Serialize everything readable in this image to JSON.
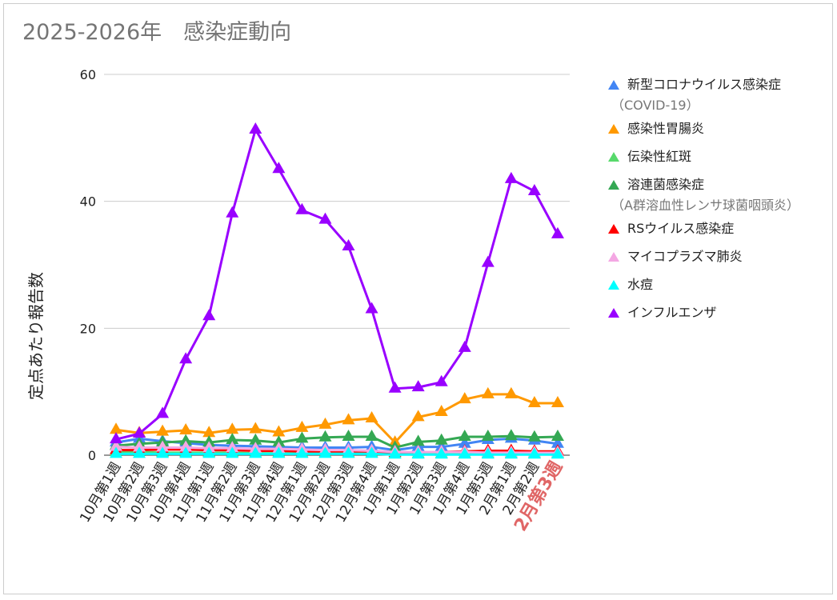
{
  "title": "2025-2026年　感染症動向",
  "chart_data": {
    "type": "line",
    "title": "2025-2026年　感染症動向",
    "ylabel": "定点あたり報告数",
    "xlabel": "",
    "ylim": [
      0,
      60
    ],
    "yticks": [
      0,
      20,
      40,
      60
    ],
    "grid": true,
    "legend": "right",
    "categories": [
      "10月第1週",
      "10月第2週",
      "10月第3週",
      "10月第4週",
      "11月第1週",
      "11月第2週",
      "11月第3週",
      "11月第4週",
      "12月第1週",
      "12月第2週",
      "12月第3週",
      "12月第4週",
      "1月第1週",
      "1月第2週",
      "1月第3週",
      "1月第4週",
      "1月第5週",
      "2月第1週",
      "2月第2週",
      "2月第3週"
    ],
    "highlight_category_color": "#e06666",
    "series": [
      {
        "name": "新型コロナウイルス感染症",
        "sub": "（COVID-19）",
        "color": "#4285f4",
        "values": [
          2.0,
          2.6,
          2.2,
          1.9,
          1.6,
          1.5,
          1.4,
          1.3,
          1.2,
          1.2,
          1.2,
          1.3,
          0.8,
          1.3,
          1.3,
          1.8,
          2.4,
          2.6,
          2.3,
          1.8
        ]
      },
      {
        "name": "感染性胃腸炎",
        "color": "#ff9900",
        "values": [
          4.0,
          3.5,
          3.7,
          3.9,
          3.5,
          4.0,
          4.1,
          3.6,
          4.3,
          4.8,
          5.5,
          5.8,
          2.0,
          6.0,
          6.8,
          8.8,
          9.6,
          9.6,
          8.2,
          8.2
        ]
      },
      {
        "name": "伝染性紅斑",
        "color": "#57d96b",
        "values": [
          0.5,
          0.5,
          0.4,
          0.4,
          0.4,
          0.4,
          0.3,
          0.3,
          0.3,
          0.3,
          0.3,
          0.3,
          0.2,
          0.2,
          0.2,
          0.2,
          0.2,
          0.2,
          0.2,
          0.2
        ]
      },
      {
        "name": "溶連菌感染症",
        "sub": "（A群溶血性レンサ球菌咽頭炎）",
        "color": "#34a853",
        "values": [
          1.5,
          1.8,
          2.0,
          2.2,
          2.0,
          2.4,
          2.3,
          2.0,
          2.6,
          2.8,
          2.9,
          2.9,
          1.2,
          2.1,
          2.3,
          2.9,
          2.9,
          3.0,
          2.8,
          2.9
        ]
      },
      {
        "name": "RSウイルス感染症",
        "color": "#ff0000",
        "values": [
          0.8,
          0.8,
          0.9,
          0.9,
          0.8,
          0.8,
          0.7,
          0.7,
          0.6,
          0.6,
          0.6,
          0.6,
          0.4,
          0.5,
          0.5,
          0.6,
          0.7,
          0.7,
          0.6,
          0.6
        ]
      },
      {
        "name": "マイコプラズマ肺炎",
        "color": "#f4a7e3",
        "values": [
          1.3,
          1.2,
          1.2,
          1.2,
          1.1,
          1.1,
          1.0,
          1.0,
          0.9,
          0.8,
          0.8,
          0.7,
          0.5,
          0.5,
          0.5,
          0.5,
          0.4,
          0.4,
          0.4,
          0.4
        ]
      },
      {
        "name": "水痘",
        "color": "#00ffff",
        "values": [
          0.2,
          0.2,
          0.2,
          0.2,
          0.2,
          0.2,
          0.2,
          0.2,
          0.2,
          0.2,
          0.2,
          0.2,
          0.1,
          0.1,
          0.1,
          0.1,
          0.1,
          0.1,
          0.1,
          0.1
        ]
      },
      {
        "name": "インフルエンザ",
        "color": "#9900ff",
        "values": [
          2.5,
          3.4,
          6.5,
          15.1,
          21.9,
          38.1,
          51.3,
          45.1,
          38.6,
          37.1,
          32.9,
          23.0,
          10.5,
          10.7,
          11.5,
          16.9,
          30.3,
          43.5,
          41.6,
          34.8
        ]
      }
    ]
  }
}
